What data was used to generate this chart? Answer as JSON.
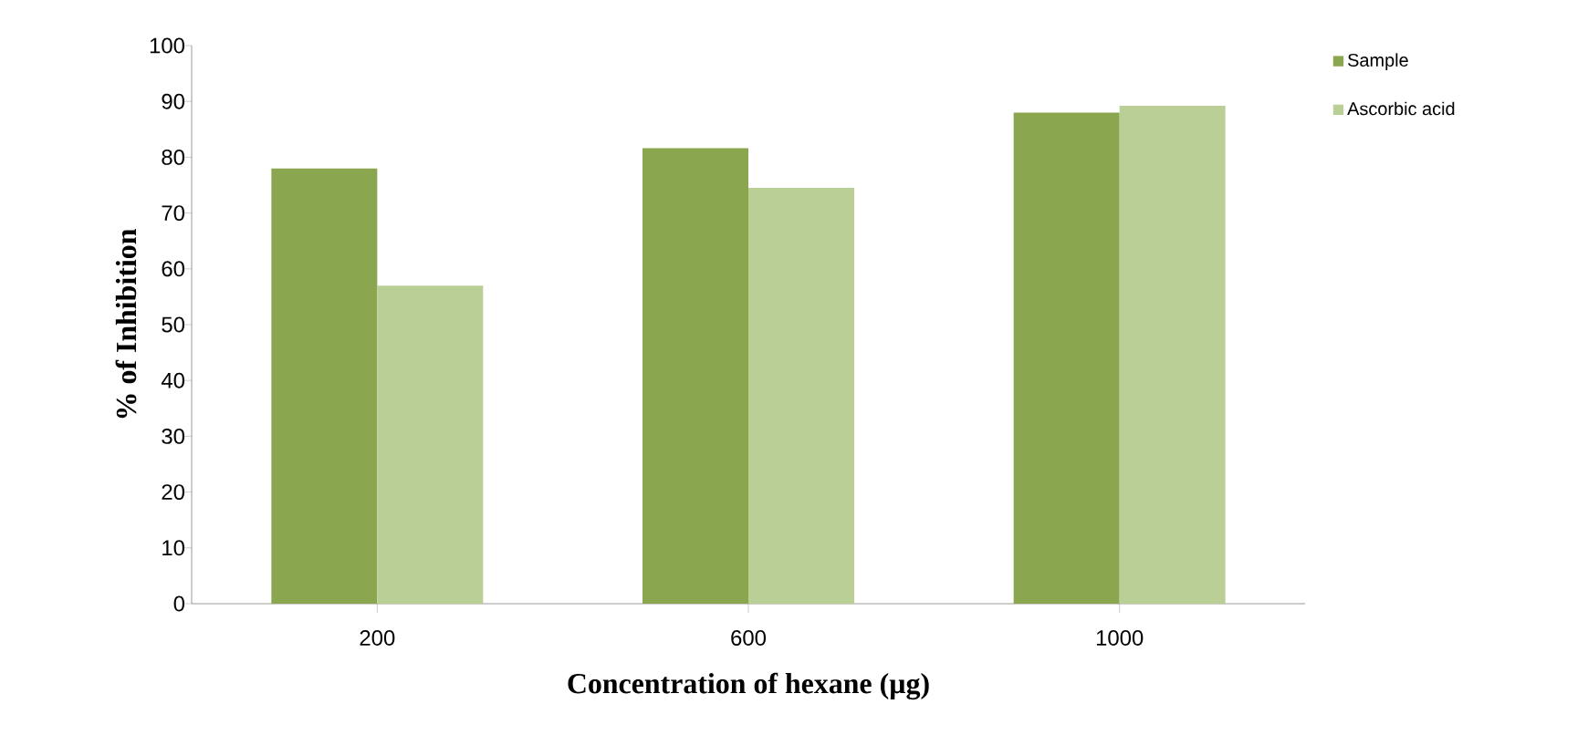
{
  "chart_data": {
    "type": "bar",
    "xlabel": "Concentration of hexane (µg)",
    "ylabel": "% of Inhibition",
    "categories": [
      "200",
      "600",
      "1000"
    ],
    "series": [
      {
        "name": "Sample",
        "color": "#8aa64e",
        "values": [
          78,
          81.6,
          88
        ]
      },
      {
        "name": "Ascorbic acid",
        "color": "#bacf96",
        "values": [
          57,
          74.5,
          89.2
        ]
      }
    ],
    "ylim": [
      0,
      100
    ],
    "yticks": [
      0,
      10,
      20,
      30,
      40,
      50,
      60,
      70,
      80,
      90,
      100
    ],
    "grid": false,
    "legend": "top right"
  }
}
